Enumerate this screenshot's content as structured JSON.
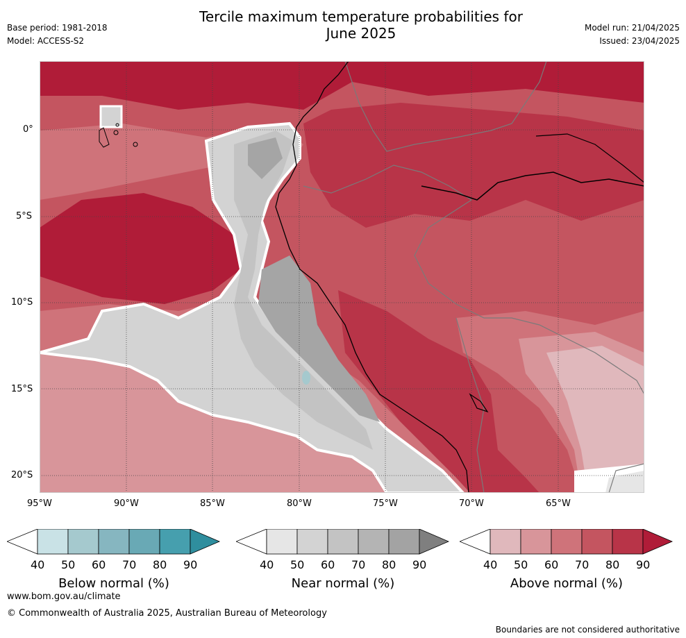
{
  "header": {
    "title_line1": "Tercile maximum temperature probabilities for",
    "title_line2": "June 2025",
    "base_period": "Base period: 1981-2018",
    "model": "Model: ACCESS-S2",
    "model_run": "Model run: 21/04/2025",
    "issued": "Issued: 23/04/2025"
  },
  "map": {
    "lat_labels": [
      "0°",
      "5°S",
      "10°S",
      "15°S",
      "20°S"
    ],
    "lon_labels": [
      "95°W",
      "90°W",
      "85°W",
      "80°W",
      "75°W",
      "70°W",
      "65°W"
    ],
    "colors": {
      "ocean_above_90": "#b01c38",
      "above_80": "#b83448",
      "above_70": "#c45560",
      "above_60": "#cf737a",
      "above_50": "#d8959a",
      "above_40": "#e0b8bc",
      "near_50": "#d3d3d3",
      "near_60": "#c3c3c3",
      "near_80": "#a5a5a5",
      "grid": "#444444",
      "coast": "#000000",
      "border": "#7a7a7a"
    }
  },
  "colorbars": [
    {
      "title": "Below normal (%)",
      "ticks": [
        "40",
        "50",
        "60",
        "70",
        "80",
        "90"
      ],
      "colors": [
        "#ffffff",
        "#c9e2e6",
        "#a5c9ce",
        "#86b6c0",
        "#69a9b5",
        "#469fae",
        "#2f8e9e"
      ]
    },
    {
      "title": "Near normal (%)",
      "ticks": [
        "40",
        "50",
        "60",
        "70",
        "80",
        "90"
      ],
      "colors": [
        "#ffffff",
        "#e6e6e6",
        "#d3d3d3",
        "#c3c3c3",
        "#b4b4b4",
        "#a3a3a3",
        "#7f7f7f"
      ]
    },
    {
      "title": "Above normal (%)",
      "ticks": [
        "40",
        "50",
        "60",
        "70",
        "80",
        "90"
      ],
      "colors": [
        "#ffffff",
        "#e0b8bc",
        "#d8959a",
        "#cf737a",
        "#c45560",
        "#b83448",
        "#b01c38"
      ]
    }
  ],
  "footer": {
    "website": "www.bom.gov.au/climate",
    "copyright": "© Commonwealth of Australia 2025, Australian Bureau of Meteorology",
    "disclaimer": "Boundaries are not considered authoritative"
  }
}
